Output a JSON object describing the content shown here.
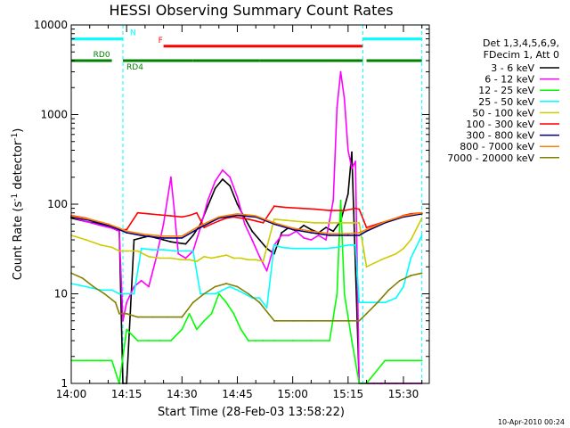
{
  "chart_data": {
    "type": "line",
    "title": "HESSI Observing Summary Count Rates",
    "xlabel": "Start Time (28-Feb-03 13:58:22)",
    "ylabel": "Count Rate (s",
    "ylabel_sup": "-1",
    "ylabel_mid": " detector",
    "ylabel_sup2": "-1",
    "ylabel_end": ")",
    "y_scale": "log",
    "ylim": [
      1,
      10000
    ],
    "xlim_minutes": [
      0,
      97
    ],
    "x_ticks": [
      {
        "label": "14:00",
        "minute": 0
      },
      {
        "label": "14:15",
        "minute": 15
      },
      {
        "label": "14:30",
        "minute": 30
      },
      {
        "label": "14:45",
        "minute": 45
      },
      {
        "label": "15:00",
        "minute": 60
      },
      {
        "label": "15:15",
        "minute": 75
      },
      {
        "label": "15:30",
        "minute": 90
      }
    ],
    "y_ticks": [
      {
        "label": "1",
        "value": 1
      },
      {
        "label": "10",
        "value": 10
      },
      {
        "label": "100",
        "value": 100
      },
      {
        "label": "1000",
        "value": 1000
      },
      {
        "label": "10000",
        "value": 10000
      }
    ],
    "legend_header": [
      "Det 1,3,4,5,6,9,",
      "FDecim 1, Att 0"
    ],
    "legend_position": "right",
    "series": [
      {
        "name": "3 - 6 keV",
        "color": "#000000",
        "x": [
          0,
          4,
          8,
          11,
          13,
          14,
          15,
          17,
          19,
          21,
          23,
          25,
          27,
          29,
          31,
          33,
          35,
          37,
          39,
          41,
          43,
          45,
          47,
          49,
          51,
          53,
          55,
          57,
          59,
          61,
          63,
          65,
          67,
          69,
          71,
          73,
          75,
          76,
          78,
          80,
          82,
          84,
          86,
          88,
          90,
          92,
          95
        ],
        "y": [
          70,
          64,
          60,
          56,
          52,
          1,
          1,
          40,
          42,
          44,
          42,
          40,
          38,
          37,
          36,
          45,
          60,
          95,
          150,
          190,
          160,
          100,
          70,
          50,
          40,
          32,
          28,
          48,
          55,
          50,
          58,
          52,
          48,
          55,
          50,
          65,
          130,
          380,
          1,
          1,
          1,
          1,
          1,
          1,
          1,
          1,
          1
        ]
      },
      {
        "name": "6 - 12 keV",
        "color": "#ff00ff",
        "x": [
          0,
          4,
          8,
          11,
          13,
          14,
          15,
          17,
          19,
          21,
          23,
          25,
          27,
          28,
          29,
          31,
          33,
          35,
          37,
          39,
          41,
          43,
          45,
          47,
          49,
          51,
          53,
          55,
          57,
          59,
          61,
          63,
          65,
          67,
          69,
          71,
          72,
          73,
          74,
          75,
          76,
          77,
          78,
          80,
          82,
          84,
          86,
          88,
          90,
          92,
          95
        ],
        "y": [
          72,
          64,
          58,
          54,
          50,
          5,
          8,
          12,
          14,
          12,
          25,
          60,
          200,
          80,
          28,
          25,
          30,
          55,
          110,
          180,
          240,
          200,
          120,
          60,
          40,
          26,
          18,
          35,
          45,
          45,
          50,
          42,
          40,
          45,
          40,
          110,
          1200,
          3000,
          1500,
          400,
          250,
          300,
          1,
          1,
          1,
          1,
          1,
          1,
          1,
          1,
          1
        ]
      },
      {
        "name": "12 - 25 keV",
        "color": "#00ff00",
        "x": [
          0,
          4,
          8,
          11,
          13,
          15,
          18,
          21,
          24,
          27,
          30,
          32,
          34,
          36,
          38,
          40,
          42,
          44,
          46,
          48,
          50,
          52,
          55,
          60,
          65,
          70,
          72,
          73,
          74,
          76,
          78,
          80,
          85,
          90,
          95
        ],
        "y": [
          1.8,
          1.8,
          1.8,
          1.8,
          1,
          4,
          3,
          3,
          3,
          3,
          4,
          6,
          4,
          5,
          6,
          10,
          8,
          6,
          4,
          3,
          3,
          3,
          3,
          3,
          3,
          3,
          10,
          110,
          10,
          3,
          1,
          1,
          1.8,
          1.8,
          1.8
        ]
      },
      {
        "name": "25 - 50 keV",
        "color": "#00ffff",
        "x": [
          0,
          4,
          8,
          11,
          13,
          15,
          17,
          19,
          22,
          25,
          28,
          31,
          33,
          35,
          37,
          39,
          41,
          43,
          45,
          47,
          49,
          51,
          53,
          55,
          57,
          60,
          63,
          66,
          69,
          72,
          75,
          77,
          78,
          80,
          82,
          85,
          88,
          90,
          92,
          95
        ],
        "y": [
          13,
          12,
          11,
          11,
          10,
          10,
          10,
          32,
          31,
          31,
          30,
          30,
          30,
          10,
          10,
          10,
          11,
          12,
          11,
          10,
          9,
          9,
          7,
          35,
          33,
          32,
          32,
          32,
          32,
          33,
          35,
          35,
          8,
          8,
          8,
          8,
          9,
          12,
          25,
          45
        ]
      },
      {
        "name": "50 - 100 keV",
        "color": "#cccc00",
        "x": [
          0,
          4,
          8,
          11,
          13,
          15,
          18,
          21,
          24,
          27,
          30,
          32,
          34,
          36,
          38,
          40,
          42,
          44,
          46,
          48,
          50,
          52,
          55,
          58,
          62,
          66,
          70,
          74,
          77,
          78,
          80,
          84,
          88,
          90,
          92,
          95
        ],
        "y": [
          45,
          40,
          35,
          33,
          30,
          30,
          30,
          26,
          25,
          25,
          24,
          24,
          23,
          26,
          25,
          26,
          27,
          25,
          25,
          24,
          24,
          23,
          68,
          66,
          64,
          62,
          62,
          62,
          62,
          62,
          20,
          24,
          28,
          32,
          40,
          70
        ]
      },
      {
        "name": "100 - 300 keV",
        "color": "#ff0000",
        "x": [
          0,
          4,
          8,
          11,
          13,
          15,
          18,
          21,
          24,
          27,
          30,
          32,
          34,
          36,
          38,
          40,
          42,
          44,
          46,
          48,
          50,
          52,
          55,
          58,
          62,
          66,
          70,
          74,
          77,
          78,
          80,
          84,
          88,
          90,
          92,
          95
        ],
        "y": [
          75,
          70,
          62,
          56,
          52,
          52,
          80,
          78,
          76,
          74,
          72,
          75,
          80,
          55,
          60,
          65,
          70,
          72,
          70,
          68,
          65,
          62,
          95,
          92,
          90,
          88,
          85,
          85,
          90,
          88,
          55,
          62,
          70,
          75,
          78,
          80
        ]
      },
      {
        "name": "300 - 800 keV",
        "color": "#000080",
        "x": [
          0,
          5,
          10,
          13,
          15,
          20,
          25,
          30,
          35,
          40,
          45,
          50,
          55,
          60,
          65,
          70,
          75,
          78,
          80,
          85,
          90,
          95
        ],
        "y": [
          72,
          66,
          58,
          52,
          48,
          44,
          42,
          42,
          55,
          70,
          75,
          72,
          60,
          52,
          48,
          45,
          45,
          45,
          50,
          62,
          72,
          78
        ]
      },
      {
        "name": "800 - 7000 keV",
        "color": "#ff8000",
        "x": [
          0,
          5,
          10,
          13,
          15,
          20,
          25,
          30,
          35,
          40,
          45,
          50,
          55,
          60,
          65,
          70,
          75,
          78,
          80,
          85,
          90,
          95
        ],
        "y": [
          74,
          68,
          60,
          54,
          50,
          46,
          44,
          44,
          58,
          72,
          78,
          74,
          62,
          54,
          50,
          47,
          47,
          48,
          52,
          64,
          74,
          80
        ]
      },
      {
        "name": "7000 - 20000 keV",
        "color": "#808000",
        "x": [
          0,
          3,
          6,
          9,
          12,
          13,
          15,
          18,
          22,
          26,
          30,
          33,
          36,
          39,
          42,
          45,
          48,
          51,
          55,
          60,
          65,
          70,
          75,
          78,
          80,
          83,
          86,
          89,
          92,
          95
        ],
        "y": [
          17,
          15,
          12,
          10,
          8,
          6,
          6,
          5.5,
          5.5,
          5.5,
          5.5,
          8,
          10,
          12,
          13,
          12,
          10,
          8,
          5,
          5,
          5,
          5,
          5,
          5,
          6,
          8,
          11,
          14,
          16,
          17
        ]
      }
    ],
    "attenuator_states": [
      {
        "label": "N",
        "color": "#00ffff",
        "level": 7000,
        "segments": [
          [
            0,
            14
          ],
          [
            79,
            95
          ]
        ]
      },
      {
        "label": "F",
        "color": "#ff0000",
        "level": 5800,
        "segments": [
          [
            25,
            79
          ]
        ]
      }
    ],
    "decimation_states": [
      {
        "label": "RD0",
        "color": "#008000",
        "level": 4000,
        "segments": [
          [
            0,
            11
          ],
          [
            33,
            51
          ],
          [
            80,
            95
          ]
        ]
      },
      {
        "label": "RD4",
        "color": "#008000",
        "level": 4000,
        "segments": [
          [
            14,
            33
          ],
          [
            51,
            79
          ]
        ]
      }
    ],
    "saa_markers_minutes": [
      0,
      14,
      79,
      95
    ],
    "grid": false,
    "footer": "10-Apr-2010 00:24"
  }
}
